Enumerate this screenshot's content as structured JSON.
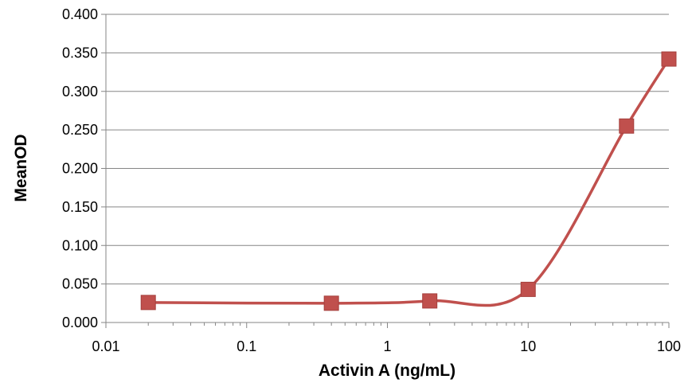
{
  "chart_data": {
    "type": "line",
    "title": "",
    "xlabel": "Activin A (ng/mL)",
    "ylabel": "MeanOD",
    "xscale": "log",
    "xlim": [
      0.01,
      100
    ],
    "ylim": [
      0,
      0.4
    ],
    "x_ticks": [
      {
        "value": 0.01,
        "label": "0.01"
      },
      {
        "value": 0.1,
        "label": "0.1"
      },
      {
        "value": 1,
        "label": "1"
      },
      {
        "value": 10,
        "label": "10"
      },
      {
        "value": 100,
        "label": "100"
      }
    ],
    "y_ticks": [
      {
        "value": 0.0,
        "label": "0.000"
      },
      {
        "value": 0.05,
        "label": "0.050"
      },
      {
        "value": 0.1,
        "label": "0.100"
      },
      {
        "value": 0.15,
        "label": "0.150"
      },
      {
        "value": 0.2,
        "label": "0.200"
      },
      {
        "value": 0.25,
        "label": "0.250"
      },
      {
        "value": 0.3,
        "label": "0.300"
      },
      {
        "value": 0.35,
        "label": "0.350"
      },
      {
        "value": 0.4,
        "label": "0.400"
      }
    ],
    "grid": "horizontal",
    "legend": "none",
    "series": [
      {
        "x": [
          0.02,
          0.4,
          2,
          10,
          50,
          100
        ],
        "y": [
          0.026,
          0.025,
          0.028,
          0.043,
          0.255,
          0.342
        ],
        "line": "smooth",
        "marker": "square",
        "color": "#c0504d"
      }
    ]
  }
}
